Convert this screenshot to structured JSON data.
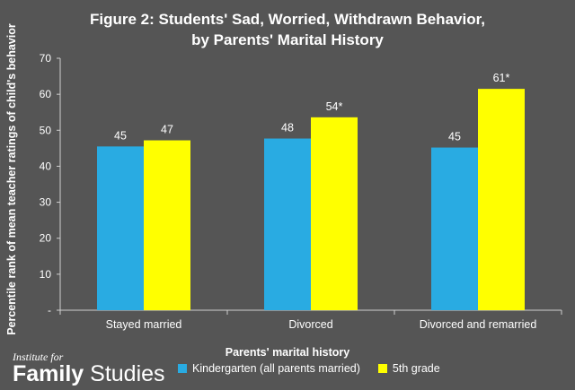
{
  "chart_data": {
    "type": "bar",
    "title": "Figure 2: Students' Sad, Worried, Withdrawn Behavior,",
    "subtitle": "by Parents' Marital History",
    "xlabel": "Parents' marital history",
    "ylabel": "Percentile rank of mean teacher ratings of child's behavior",
    "categories": [
      "Stayed married",
      "Divorced",
      "Divorced and remarried"
    ],
    "series": [
      {
        "name": "Kindergarten (all parents married)",
        "color": "#29abe2",
        "values": [
          45.5,
          47.7,
          45.2
        ],
        "labels": [
          "45",
          "48",
          "45"
        ]
      },
      {
        "name": "5th grade",
        "color": "#ffff00",
        "values": [
          47.2,
          53.6,
          61.5
        ],
        "labels": [
          "47",
          "54*",
          "61*"
        ]
      }
    ],
    "yticks": [
      "-",
      "10",
      "20",
      "30",
      "40",
      "50",
      "60",
      "70"
    ],
    "ylim": [
      0,
      70
    ],
    "grid": false,
    "legend_position": "bottom"
  },
  "branding": {
    "top": "Institute for",
    "word1": "Family",
    "word2": "Studies"
  }
}
